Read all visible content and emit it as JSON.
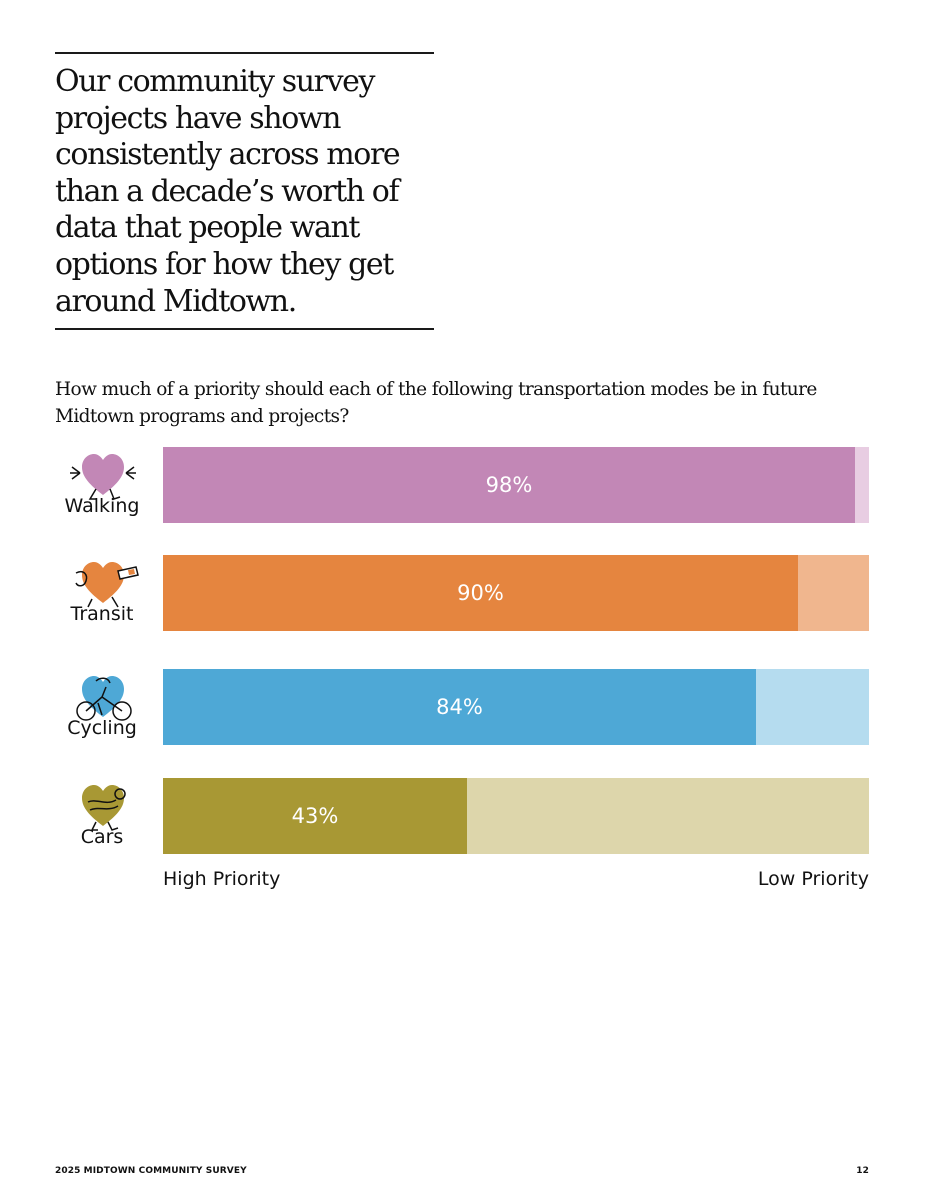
{
  "header": {
    "pull_quote": "Our community survey projects have shown consistently across more than a decade’s worth of data that people want options for how they get around Midtown."
  },
  "chart_data": {
    "type": "bar",
    "orientation": "horizontal",
    "stacked": true,
    "title": "How much of a priority should each of the following transportation modes be in future Midtown programs and projects?",
    "categories": [
      "Walking",
      "Transit",
      "Cycling",
      "Cars"
    ],
    "value_labels": [
      "98%",
      "90%",
      "84%",
      "43%"
    ],
    "series": [
      {
        "name": "High Priority",
        "values": [
          98,
          90,
          84,
          43
        ]
      },
      {
        "name": "Low Priority",
        "values": [
          2,
          10,
          16,
          57
        ]
      }
    ],
    "xlim": [
      0,
      100
    ],
    "axis_left_label": "High Priority",
    "axis_right_label": "Low Priority",
    "colors": {
      "Walking": {
        "high": "#c287b6",
        "low": "#e8cde2"
      },
      "Transit": {
        "high": "#e5853f",
        "low": "#f0b68e"
      },
      "Cycling": {
        "high": "#4ea8d6",
        "low": "#b5dcef"
      },
      "Cars": {
        "high": "#a89834",
        "low": "#ddd6ab"
      }
    },
    "icons": [
      "walking-heart-icon",
      "transit-heart-icon",
      "cycling-heart-icon",
      "cars-heart-icon"
    ]
  },
  "footer": {
    "left": "2025 MIDTOWN COMMUNITY SURVEY",
    "page_number": "12"
  }
}
